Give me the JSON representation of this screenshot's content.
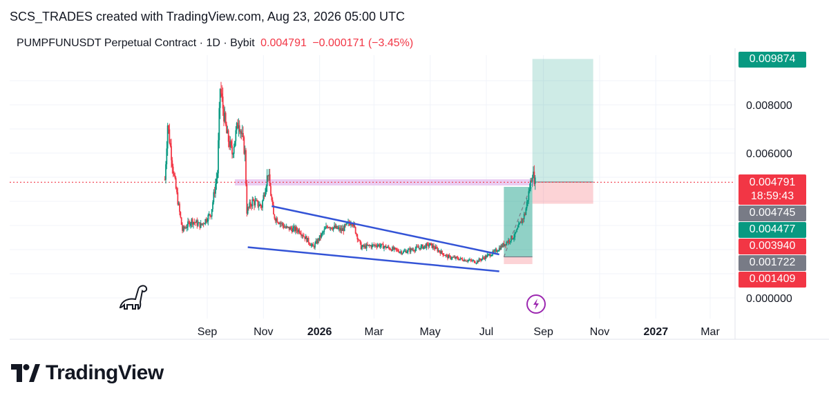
{
  "header": {
    "attribution": "SCS_TRADES created with TradingView.com, Aug 23, 2026 05:00 UTC"
  },
  "symbol": {
    "name": "PUMPFUNUSDT Perpetual Contract · 1D · Bybit",
    "price": "0.004791",
    "change": "−0.000171 (−3.45%)"
  },
  "price_tags": [
    {
      "label": "0.009874",
      "sub": "",
      "color": "#089981",
      "value": 0.009874
    },
    {
      "label": "0.004791",
      "sub": "18:59:43",
      "color": "#f23645",
      "value": 0.004791
    },
    {
      "label": "0.004745",
      "sub": "",
      "color": "#787b86",
      "value": 0.004745
    },
    {
      "label": "0.004477",
      "sub": "",
      "color": "#089981",
      "value": 0.004477
    },
    {
      "label": "0.003940",
      "sub": "",
      "color": "#f23645",
      "value": 0.00394
    },
    {
      "label": "0.001722",
      "sub": "",
      "color": "#787b86",
      "value": 0.001722
    },
    {
      "label": "0.001409",
      "sub": "",
      "color": "#f23645",
      "value": 0.001409
    }
  ],
  "brand": {
    "name": "TradingView"
  },
  "colors": {
    "up": "#089981",
    "down": "#f23645",
    "trendline": "#3353d6",
    "zone": "#e6c4f0"
  },
  "chart_data": {
    "type": "candlestick",
    "y_ticks": [
      "0.008000",
      "0.006000",
      "0.000000"
    ],
    "y_tick_values": [
      0.008,
      0.006,
      0.0
    ],
    "x_ticks": [
      "Sep",
      "Nov",
      "2026",
      "Mar",
      "May",
      "Jul",
      "Sep",
      "Nov",
      "2027",
      "Mar"
    ],
    "x_tick_dates": [
      "2025-09-01",
      "2025-11-01",
      "2026-01-01",
      "2026-03-01",
      "2026-05-01",
      "2026-07-01",
      "2026-09-01",
      "2026-11-01",
      "2027-01-01",
      "2027-03-01"
    ],
    "ylim": [
      0.0,
      0.0099
    ],
    "last_price": 0.004791,
    "price_path": [
      [
        "2025-07-17",
        0.0049
      ],
      [
        "2025-07-20",
        0.0072
      ],
      [
        "2025-07-27",
        0.005
      ],
      [
        "2025-08-05",
        0.0028
      ],
      [
        "2025-08-15",
        0.0032
      ],
      [
        "2025-08-25",
        0.003
      ],
      [
        "2025-09-05",
        0.0035
      ],
      [
        "2025-09-12",
        0.0052
      ],
      [
        "2025-09-15",
        0.0087
      ],
      [
        "2025-09-22",
        0.0068
      ],
      [
        "2025-09-28",
        0.006
      ],
      [
        "2025-10-05",
        0.0074
      ],
      [
        "2025-10-12",
        0.006
      ],
      [
        "2025-10-14",
        0.0036
      ],
      [
        "2025-10-20",
        0.004
      ],
      [
        "2025-10-30",
        0.0038
      ],
      [
        "2025-11-06",
        0.0052
      ],
      [
        "2025-11-12",
        0.0034
      ],
      [
        "2025-11-25",
        0.0029
      ],
      [
        "2025-12-10",
        0.0028
      ],
      [
        "2025-12-25",
        0.0021
      ],
      [
        "2026-01-10",
        0.003
      ],
      [
        "2026-01-25",
        0.0028
      ],
      [
        "2026-02-05",
        0.0032
      ],
      [
        "2026-02-15",
        0.0021
      ],
      [
        "2026-03-05",
        0.0022
      ],
      [
        "2026-04-01",
        0.0019
      ],
      [
        "2026-05-01",
        0.0022
      ],
      [
        "2026-05-20",
        0.0017
      ],
      [
        "2026-06-20",
        0.0015
      ],
      [
        "2026-07-10",
        0.0019
      ],
      [
        "2026-08-01",
        0.0026
      ],
      [
        "2026-08-12",
        0.0035
      ],
      [
        "2026-08-20",
        0.0052
      ],
      [
        "2026-08-23",
        0.0048
      ]
    ],
    "wedge_upper": [
      [
        "2025-11-10",
        0.0038
      ],
      [
        "2026-07-15",
        0.0018
      ]
    ],
    "wedge_lower": [
      [
        "2025-10-15",
        0.0021
      ],
      [
        "2026-07-15",
        0.0011
      ]
    ],
    "zone_price": 0.0048,
    "positions": [
      {
        "start": "2026-07-20",
        "end": "2026-08-20",
        "entry": 0.0017,
        "target": 0.0046,
        "stop": 0.0014
      },
      {
        "start": "2026-08-20",
        "end": "2026-10-25",
        "entry": 0.0048,
        "target": 0.0099,
        "stop": 0.0039
      }
    ]
  }
}
